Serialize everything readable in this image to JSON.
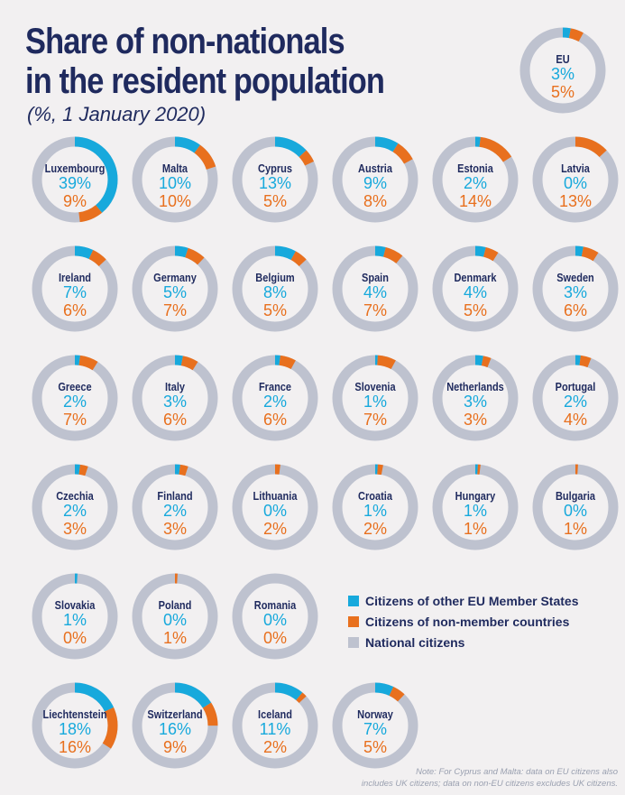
{
  "title_line1": "Share of non-nationals",
  "title_line2": "in the resident population",
  "subtitle": "(%, 1 January 2020)",
  "colors": {
    "eu_citizens": "#17a9dc",
    "non_member": "#e8701e",
    "national": "#bec2cf",
    "text": "#1f2a5e",
    "background": "#f2f0f1"
  },
  "legend": [
    {
      "label": "Citizens of other EU Member States",
      "color": "#17a9dc"
    },
    {
      "label": "Citizens of non-member countries",
      "color": "#e8701e"
    },
    {
      "label": "National citizens",
      "color": "#bec2cf"
    }
  ],
  "note_line1": "Note: For Cyprus and Malta: data on EU citizens also",
  "note_line2": "includes UK citizens; data on non-EU citizens excludes UK citizens.",
  "chart_data": {
    "type": "donut",
    "unit": "%",
    "aggregate": {
      "name": "EU",
      "eu": 3,
      "non_eu": 5
    },
    "countries": [
      {
        "name": "Luxembourg",
        "eu": 39,
        "non_eu": 9
      },
      {
        "name": "Malta",
        "eu": 10,
        "non_eu": 10
      },
      {
        "name": "Cyprus",
        "eu": 13,
        "non_eu": 5
      },
      {
        "name": "Austria",
        "eu": 9,
        "non_eu": 8
      },
      {
        "name": "Estonia",
        "eu": 2,
        "non_eu": 14
      },
      {
        "name": "Latvia",
        "eu": 0,
        "non_eu": 13
      },
      {
        "name": "Ireland",
        "eu": 7,
        "non_eu": 6
      },
      {
        "name": "Germany",
        "eu": 5,
        "non_eu": 7
      },
      {
        "name": "Belgium",
        "eu": 8,
        "non_eu": 5
      },
      {
        "name": "Spain",
        "eu": 4,
        "non_eu": 7
      },
      {
        "name": "Denmark",
        "eu": 4,
        "non_eu": 5
      },
      {
        "name": "Sweden",
        "eu": 3,
        "non_eu": 6
      },
      {
        "name": "Greece",
        "eu": 2,
        "non_eu": 7
      },
      {
        "name": "Italy",
        "eu": 3,
        "non_eu": 6
      },
      {
        "name": "France",
        "eu": 2,
        "non_eu": 6
      },
      {
        "name": "Slovenia",
        "eu": 1,
        "non_eu": 7
      },
      {
        "name": "Netherlands",
        "eu": 3,
        "non_eu": 3
      },
      {
        "name": "Portugal",
        "eu": 2,
        "non_eu": 4
      },
      {
        "name": "Czechia",
        "eu": 2,
        "non_eu": 3
      },
      {
        "name": "Finland",
        "eu": 2,
        "non_eu": 3
      },
      {
        "name": "Lithuania",
        "eu": 0,
        "non_eu": 2
      },
      {
        "name": "Croatia",
        "eu": 1,
        "non_eu": 2
      },
      {
        "name": "Hungary",
        "eu": 1,
        "non_eu": 1
      },
      {
        "name": "Bulgaria",
        "eu": 0,
        "non_eu": 1
      },
      {
        "name": "Slovakia",
        "eu": 1,
        "non_eu": 0
      },
      {
        "name": "Poland",
        "eu": 0,
        "non_eu": 1
      },
      {
        "name": "Romania",
        "eu": 0,
        "non_eu": 0
      },
      {
        "name": "Liechtenstein",
        "eu": 18,
        "non_eu": 16
      },
      {
        "name": "Switzerland",
        "eu": 16,
        "non_eu": 9
      },
      {
        "name": "Iceland",
        "eu": 11,
        "non_eu": 2
      },
      {
        "name": "Norway",
        "eu": 7,
        "non_eu": 5
      }
    ]
  }
}
